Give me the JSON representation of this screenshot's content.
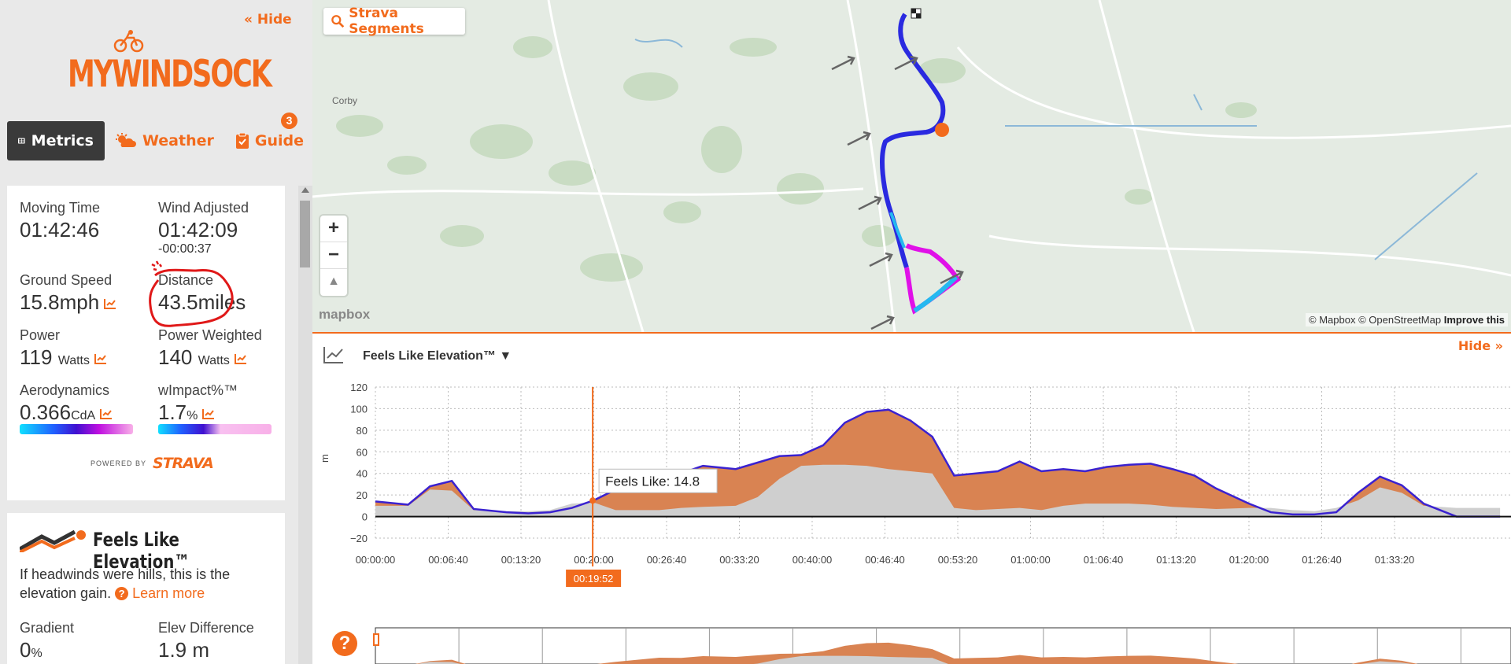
{
  "sidebar": {
    "hide_label": "« Hide",
    "logo_text": "MYWINDSOCK",
    "tabs": [
      {
        "label": "Metrics",
        "icon": "grid-icon"
      },
      {
        "label": "Weather",
        "icon": "weather-icon"
      },
      {
        "label": "Guide",
        "icon": "clipboard-icon"
      }
    ],
    "guide_badge": "3"
  },
  "metrics": {
    "moving_time_label": "Moving Time",
    "moving_time_value": "01:42:46",
    "wind_adjusted_label": "Wind Adjusted",
    "wind_adjusted_value": "01:42:09",
    "wind_adjusted_diff": "-00:00:37",
    "ground_speed_label": "Ground Speed",
    "ground_speed_value": "15.8mph",
    "distance_label": "Distance",
    "distance_value": "43.5miles",
    "power_label": "Power",
    "power_value": "119",
    "power_unit": "Watts",
    "power_weighted_label": "Power Weighted",
    "power_weighted_value": "140",
    "power_weighted_unit": "Watts",
    "aero_label": "Aerodynamics",
    "aero_value": "0.366",
    "aero_unit": "CdA",
    "wimpact_label": "wImpact%™",
    "wimpact_value": "1.7",
    "wimpact_unit": "%",
    "powered_by": "POWERED BY",
    "strava_logo": "STRAVA"
  },
  "fle_card": {
    "title": "Feels Like Elevation™",
    "description": "If headwinds were hills, this is the elevation gain.",
    "learn_more": "Learn more",
    "gradient_label": "Gradient",
    "gradient_value": "0",
    "gradient_unit": "%",
    "elev_diff_label": "Elev Difference",
    "elev_diff_value": "1.9 m"
  },
  "map": {
    "strava_segments": "Strava Segments",
    "zoom_in": "+",
    "zoom_out": "−",
    "compass": "▲",
    "attribution_mapbox": "© Mapbox",
    "attribution_osm": "© OpenStreetMap",
    "improve": "Improve this",
    "mapbox_logo": "mapbox",
    "place_corby": "Corby",
    "colors": {
      "route_blue": "#2a2ae0",
      "route_cyan": "#25b8f0",
      "route_magenta": "#e010e8",
      "marker": "#f26b1d"
    }
  },
  "elevation_panel": {
    "title": "Feels Like Elevation™ ▼",
    "hide_label": "Hide",
    "tooltip": "Feels Like: 14.8",
    "cursor_time": "00:19:52",
    "help": "?"
  },
  "chart_data": {
    "type": "area",
    "title": "",
    "xlabel": "",
    "ylabel": "m",
    "ylim": [
      -20,
      120
    ],
    "yticks": [
      "120",
      "100",
      "80",
      "60",
      "40",
      "20",
      "0",
      "−20"
    ],
    "x_ticks": [
      "00:00:00",
      "00:06:40",
      "00:13:20",
      "00:20:00",
      "00:26:40",
      "00:33:20",
      "00:40:00",
      "00:46:40",
      "00:53:20",
      "01:00:00",
      "01:06:40",
      "01:13:20",
      "01:20:00",
      "01:26:40",
      "01:33:20"
    ],
    "x_minutes": [
      0,
      3,
      5,
      7,
      9,
      12,
      14,
      16,
      18,
      20,
      22,
      24,
      26,
      28,
      30,
      33,
      35,
      37,
      39,
      41,
      43,
      45,
      47,
      49,
      51,
      53,
      55,
      57,
      59,
      61,
      63,
      65,
      67,
      69,
      71,
      73,
      75,
      77,
      80,
      82,
      84,
      86,
      88,
      90,
      92,
      94,
      96,
      99,
      101,
      103
    ],
    "series": [
      {
        "name": "Feels Like",
        "values": [
          14,
          11,
          28,
          33,
          7,
          4,
          3,
          4,
          8,
          15,
          25,
          33,
          41,
          40,
          47,
          44,
          50,
          56,
          57,
          66,
          87,
          97,
          99,
          89,
          74,
          38,
          40,
          42,
          51,
          42,
          44,
          42,
          46,
          48,
          49,
          44,
          38,
          26,
          12,
          4,
          2,
          2,
          4,
          22,
          37,
          29,
          12,
          0,
          0,
          0
        ]
      },
      {
        "name": "Elevation",
        "values": [
          10,
          10,
          25,
          24,
          6,
          5,
          5,
          6,
          12,
          13,
          6,
          6,
          6,
          8,
          9,
          10,
          18,
          35,
          47,
          48,
          48,
          47,
          44,
          42,
          40,
          8,
          6,
          7,
          8,
          6,
          10,
          12,
          12,
          12,
          11,
          9,
          8,
          7,
          8,
          8,
          6,
          5,
          8,
          15,
          27,
          22,
          10,
          8,
          8,
          8
        ]
      }
    ],
    "cursor_x_minutes": 19.9,
    "cursor_value": 14.8,
    "colors": {
      "feels_fill": "#d98352",
      "elev_fill": "#cfcfcf",
      "cursor": "#f26b1d"
    }
  }
}
